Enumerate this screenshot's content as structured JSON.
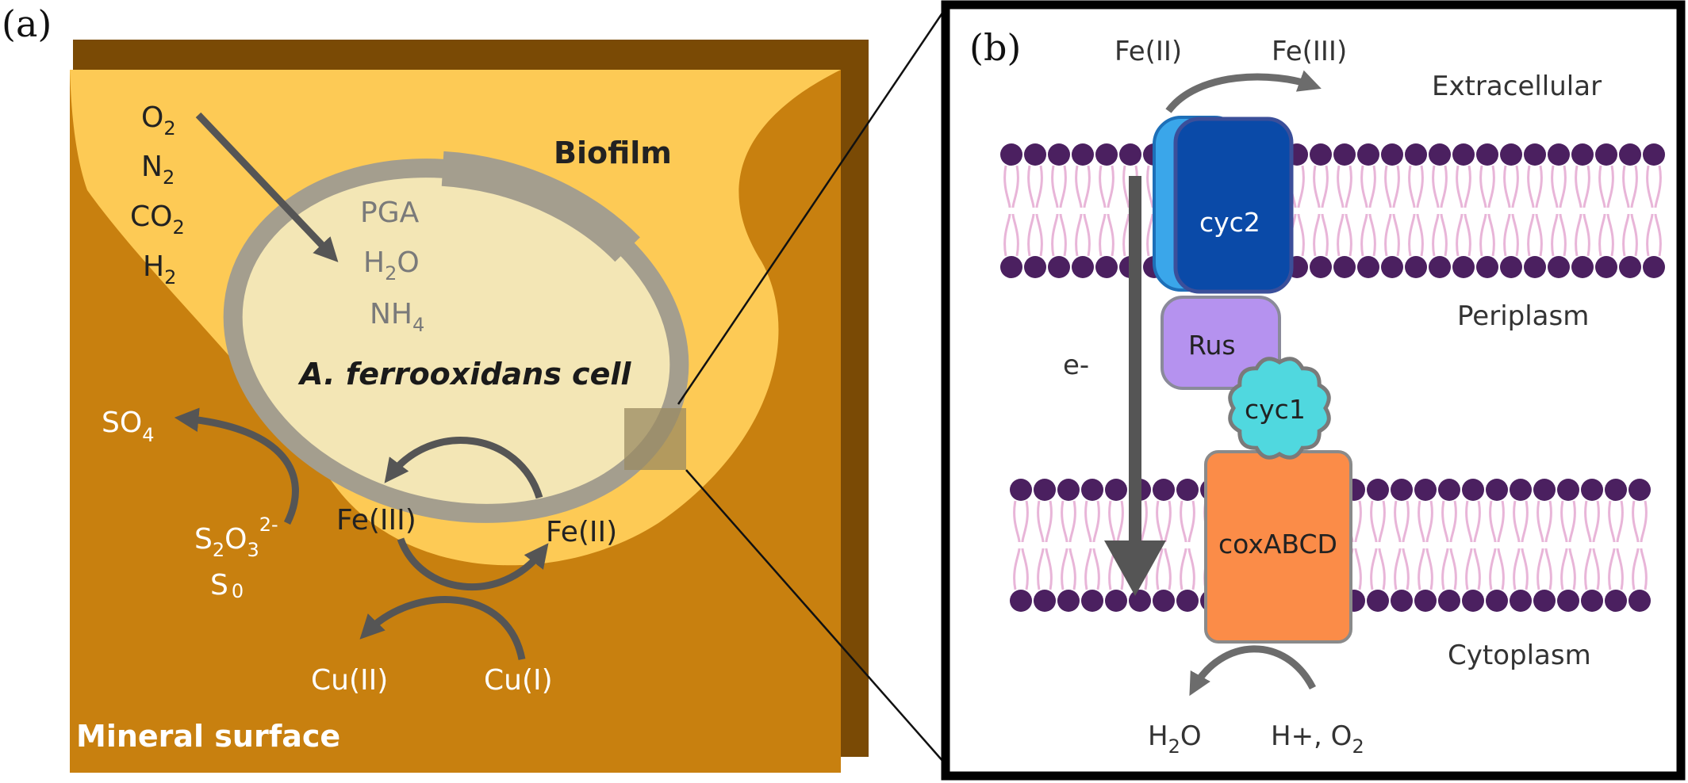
{
  "panel_a": {
    "label": "(a)",
    "biofilm_label": "Biofilm",
    "mineral_label": "Mineral surface",
    "cell_label_italic": "A. ferrooxidans",
    "cell_label_rest": " cell",
    "gases": [
      {
        "main": "O",
        "sub": "2"
      },
      {
        "main": "N",
        "sub": "2"
      },
      {
        "main": "CO",
        "sub": "2"
      },
      {
        "main": "H",
        "sub": "2"
      }
    ],
    "inside": {
      "pga": "PGA",
      "h2o_a": "H",
      "h2o_sub": "2",
      "h2o_b": "O",
      "nh4_main": "NH",
      "nh4_sub": "4"
    },
    "iron": {
      "fe3": "Fe(III)",
      "fe2": "Fe(II)"
    },
    "copper": {
      "cu2": "Cu(II)",
      "cu1": "Cu(I)"
    },
    "sulfur": {
      "so4_main": "SO",
      "so4_sub": "4",
      "s2o3_a": "S",
      "s2o3_sub1": "2",
      "s2o3_b": "O",
      "s2o3_sub2": "3",
      "s2o3_sup": "2-",
      "s0_main": "S",
      "s0_sub": "0"
    }
  },
  "panel_b": {
    "label": "(b)",
    "fe2": "Fe(II)",
    "fe3": "Fe(III)",
    "extracellular": "Extracellular",
    "periplasm": "Periplasm",
    "cytoplasm": "Cytoplasm",
    "electron": "e-",
    "proteins": {
      "cyc2": "cyc2",
      "rus": "Rus",
      "cyc1": "cyc1",
      "cox": "coxABCD"
    },
    "h2o_a": "H",
    "h2o_sub": "2",
    "h2o_b": "O",
    "hplus": "H+, O",
    "hplus_sub": "2"
  },
  "colors": {
    "mineral": "#c8800f",
    "mineral_shadow": "#7a4a05",
    "biofilm": "#fdca55",
    "cell_interior": "#f3e6b5",
    "cell_wall": "#a49e8e",
    "arrow": "#555555",
    "lipid_head": "#4b2060",
    "lipid_tail": "#e8b5d8",
    "cyc2_light": "#3aa6ea",
    "cyc2_dark": "#0a4aa8",
    "rus": "#b592ef",
    "cyc1": "#50d8df",
    "cox": "#fb8c48"
  }
}
